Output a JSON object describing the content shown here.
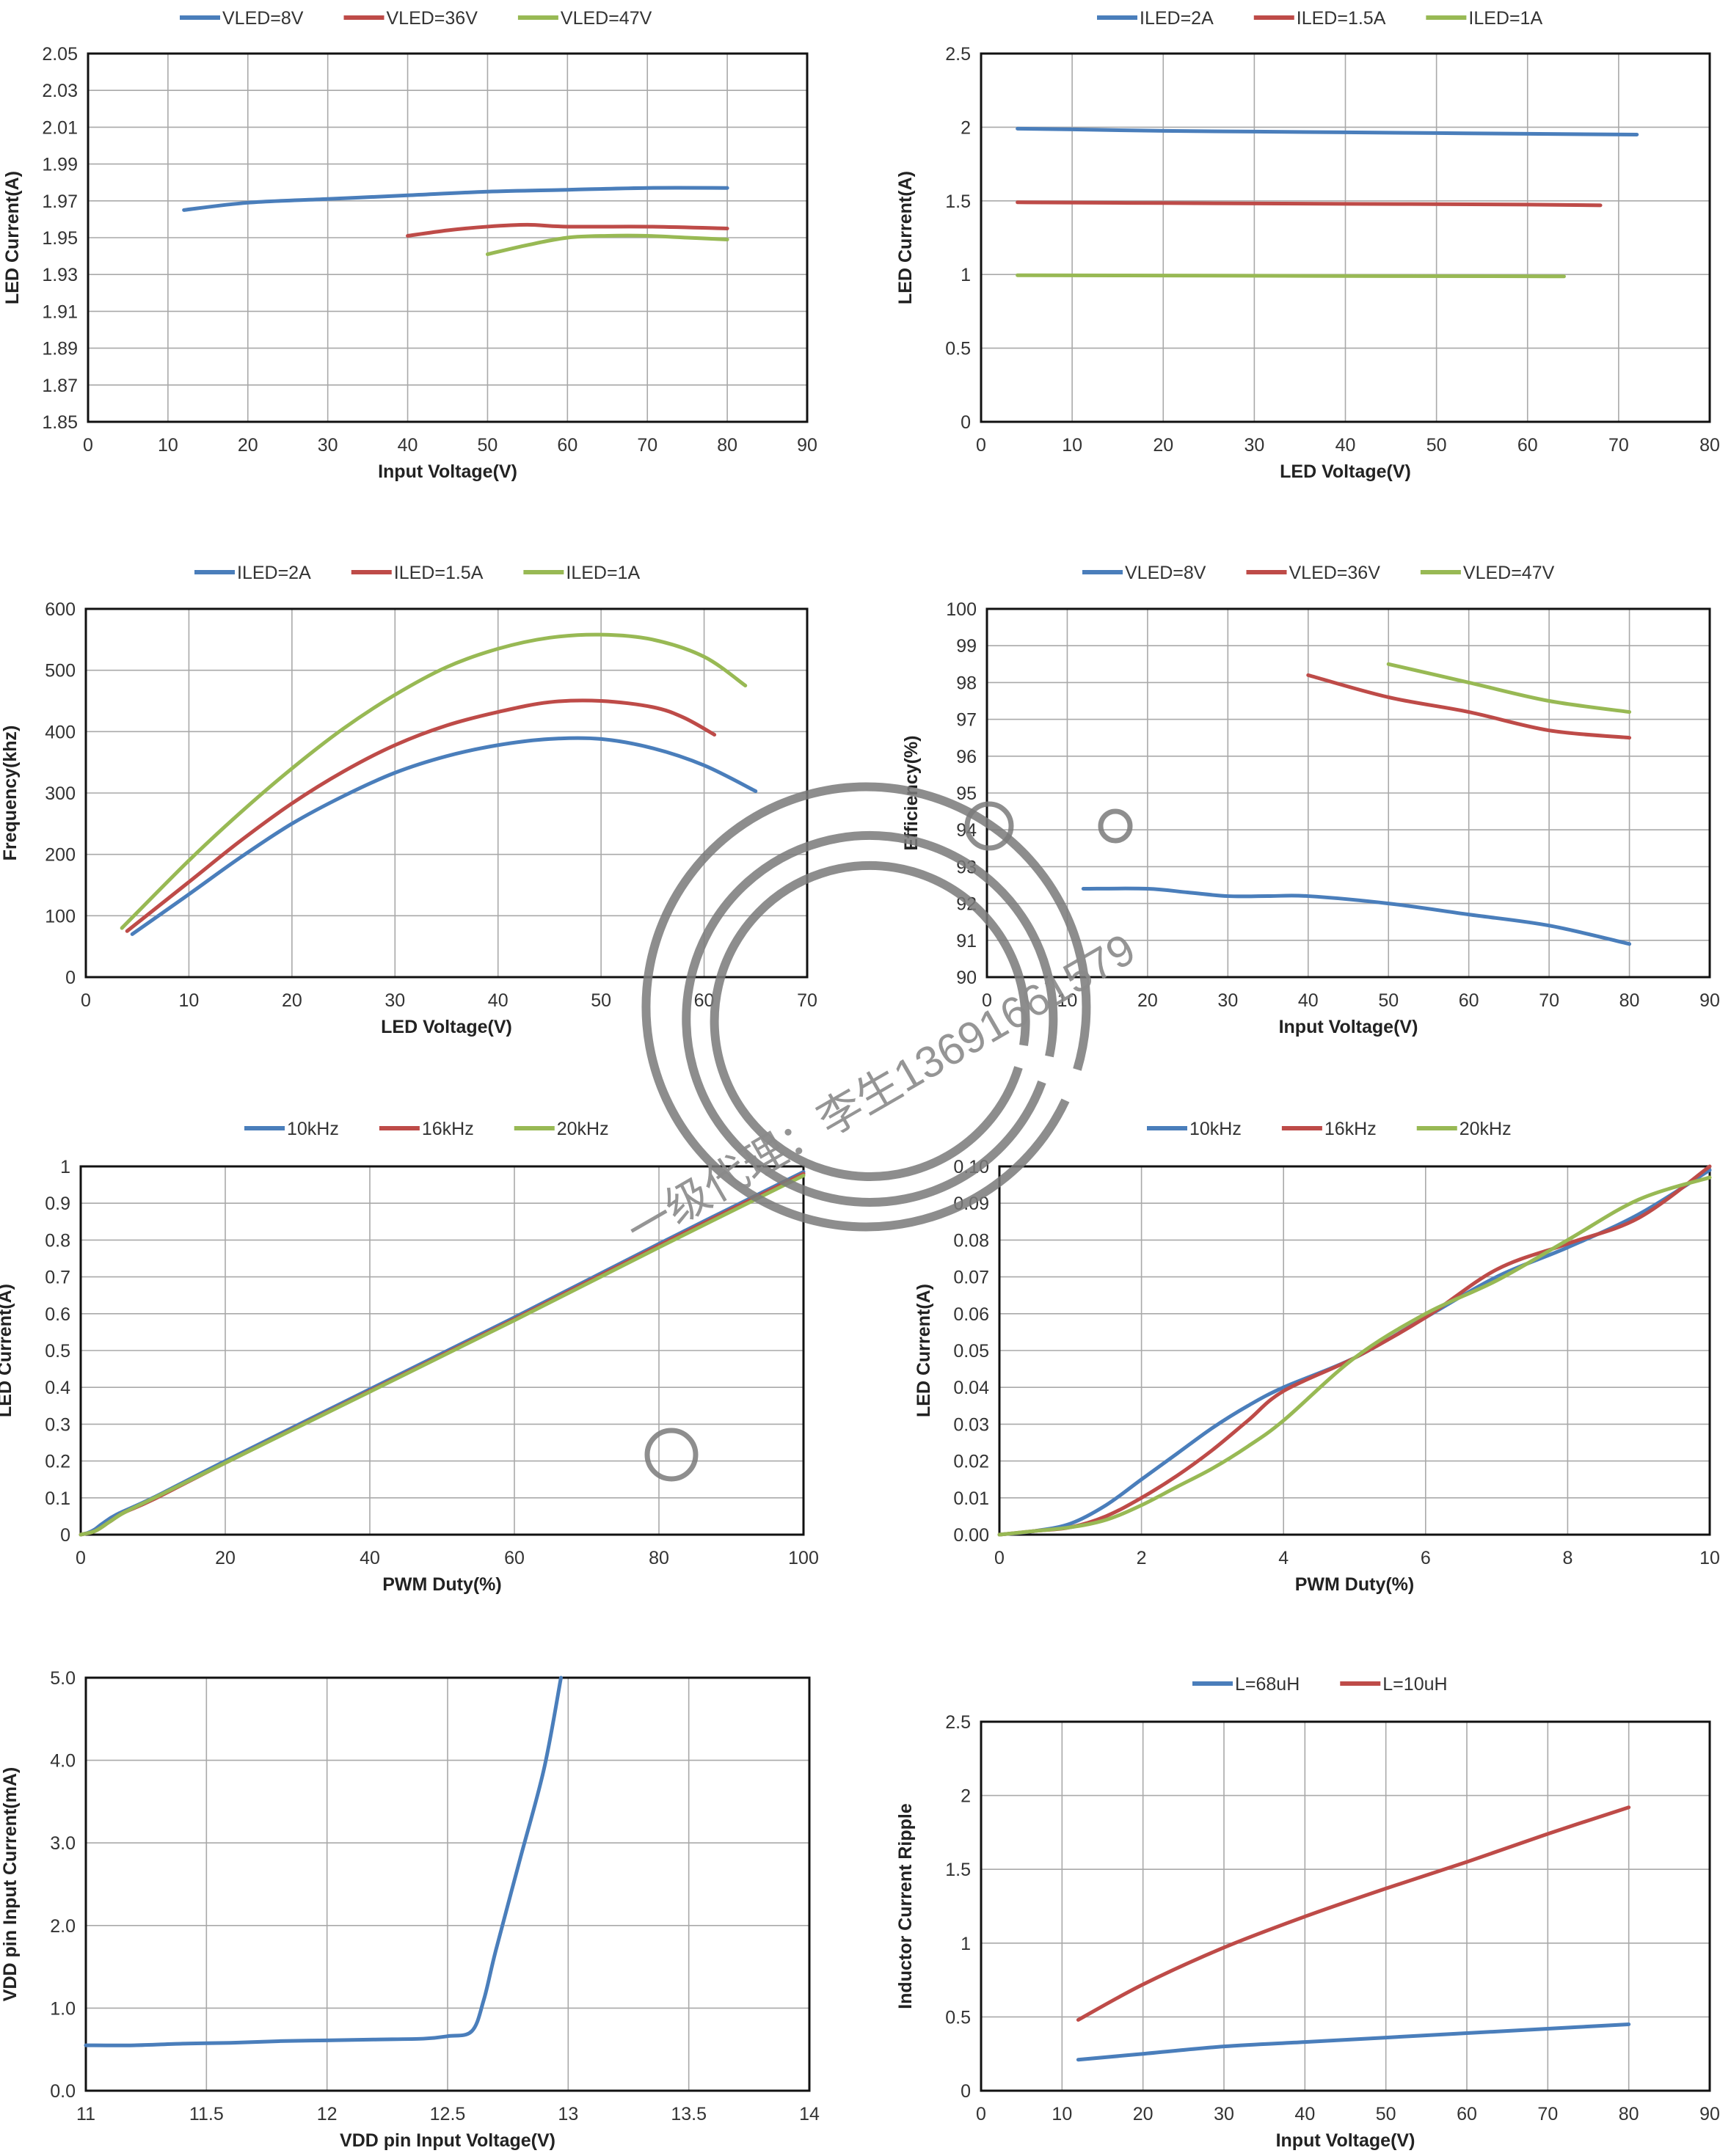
{
  "colors": {
    "blue": "#4a7ebb",
    "red": "#be4b48",
    "green": "#98b954"
  },
  "chart_data": [
    {
      "type": "line",
      "xlabel": "Input Voltage(V)",
      "ylabel": "LED Current(A)",
      "xlim": [
        0,
        90
      ],
      "ylim": [
        1.85,
        2.05
      ],
      "xticks": [
        0,
        10,
        20,
        30,
        40,
        50,
        60,
        70,
        80,
        90
      ],
      "yticks": [
        1.85,
        1.87,
        1.89,
        1.91,
        1.93,
        1.95,
        1.97,
        1.99,
        2.01,
        2.03,
        2.05
      ],
      "xtick_labels": [
        "0",
        "10",
        "20",
        "30",
        "40",
        "50",
        "60",
        "70",
        "80",
        "90"
      ],
      "ytick_labels": [
        "1.85",
        "1.87",
        "1.89",
        "1.91",
        "1.93",
        "1.95",
        "1.97",
        "1.99",
        "2.01",
        "2.03",
        "2.05"
      ],
      "grid": true,
      "legend": "top",
      "series": [
        {
          "name": "VLED=8V",
          "color": "blue",
          "x": [
            12,
            20,
            30,
            40,
            50,
            60,
            70,
            80
          ],
          "y": [
            1.965,
            1.969,
            1.971,
            1.973,
            1.975,
            1.976,
            1.977,
            1.977
          ]
        },
        {
          "name": "VLED=36V",
          "color": "red",
          "x": [
            40,
            45,
            50,
            55,
            60,
            70,
            80
          ],
          "y": [
            1.951,
            1.954,
            1.956,
            1.957,
            1.956,
            1.956,
            1.955
          ]
        },
        {
          "name": "VLED=47V",
          "color": "green",
          "x": [
            50,
            55,
            60,
            65,
            70,
            75,
            80
          ],
          "y": [
            1.941,
            1.946,
            1.95,
            1.951,
            1.951,
            1.95,
            1.949
          ]
        }
      ]
    },
    {
      "type": "line",
      "xlabel": "LED Voltage(V)",
      "ylabel": "LED Current(A)",
      "xlim": [
        0,
        80
      ],
      "ylim": [
        0,
        2.5
      ],
      "xticks": [
        0,
        10,
        20,
        30,
        40,
        50,
        60,
        70,
        80
      ],
      "yticks": [
        0,
        0.5,
        1,
        1.5,
        2,
        2.5
      ],
      "xtick_labels": [
        "0",
        "10",
        "20",
        "30",
        "40",
        "50",
        "60",
        "70",
        "80"
      ],
      "ytick_labels": [
        "0",
        "0.5",
        "1",
        "1.5",
        "2",
        "2.5"
      ],
      "grid": true,
      "legend": "top",
      "series": [
        {
          "name": "ILED=2A",
          "color": "blue",
          "x": [
            4,
            10,
            20,
            30,
            40,
            50,
            60,
            72
          ],
          "y": [
            1.99,
            1.985,
            1.975,
            1.97,
            1.965,
            1.96,
            1.955,
            1.95
          ]
        },
        {
          "name": "ILED=1.5A",
          "color": "red",
          "x": [
            4,
            20,
            40,
            60,
            68
          ],
          "y": [
            1.49,
            1.485,
            1.48,
            1.475,
            1.47
          ]
        },
        {
          "name": "ILED=1A",
          "color": "green",
          "x": [
            4,
            20,
            40,
            60,
            64
          ],
          "y": [
            0.995,
            0.993,
            0.99,
            0.988,
            0.987
          ]
        }
      ]
    },
    {
      "type": "line",
      "xlabel": "LED Voltage(V)",
      "ylabel": "Frequency(khz)",
      "xlim": [
        0,
        70
      ],
      "ylim": [
        0,
        600
      ],
      "xticks": [
        0,
        10,
        20,
        30,
        40,
        50,
        60,
        70
      ],
      "yticks": [
        0,
        100,
        200,
        300,
        400,
        500,
        600
      ],
      "xtick_labels": [
        "0",
        "10",
        "20",
        "30",
        "40",
        "50",
        "60",
        "70"
      ],
      "ytick_labels": [
        "0",
        "100",
        "200",
        "300",
        "400",
        "500",
        "600"
      ],
      "grid": true,
      "legend": "top",
      "series": [
        {
          "name": "ILED=2A",
          "color": "blue",
          "x": [
            4.5,
            10,
            15,
            20,
            25,
            30,
            35,
            40,
            45,
            50,
            55,
            60,
            65
          ],
          "y": [
            70,
            135,
            195,
            250,
            295,
            333,
            360,
            378,
            388,
            388,
            373,
            345,
            303
          ]
        },
        {
          "name": "ILED=1.5A",
          "color": "red",
          "x": [
            4,
            10,
            15,
            20,
            25,
            30,
            35,
            40,
            45,
            50,
            55,
            58,
            61
          ],
          "y": [
            75,
            155,
            222,
            283,
            335,
            378,
            410,
            432,
            448,
            450,
            440,
            423,
            395
          ]
        },
        {
          "name": "ILED=1A",
          "color": "green",
          "x": [
            3.5,
            10,
            15,
            20,
            25,
            30,
            35,
            40,
            45,
            50,
            55,
            60,
            64
          ],
          "y": [
            80,
            190,
            268,
            340,
            405,
            460,
            505,
            535,
            553,
            558,
            550,
            522,
            475
          ]
        }
      ]
    },
    {
      "type": "line",
      "xlabel": "Input Voltage(V)",
      "ylabel": "Efficiency(%)",
      "xlim": [
        0,
        90
      ],
      "ylim": [
        90,
        100
      ],
      "xticks": [
        0,
        10,
        20,
        30,
        40,
        50,
        60,
        70,
        80,
        90
      ],
      "yticks": [
        90,
        91,
        92,
        93,
        94,
        95,
        96,
        97,
        98,
        99,
        100
      ],
      "xtick_labels": [
        "0",
        "10",
        "20",
        "30",
        "40",
        "50",
        "60",
        "70",
        "80",
        "90"
      ],
      "ytick_labels": [
        "90",
        "91",
        "92",
        "93",
        "94",
        "95",
        "96",
        "97",
        "98",
        "99",
        "100"
      ],
      "grid": true,
      "legend": "top",
      "series": [
        {
          "name": "VLED=8V",
          "color": "blue",
          "x": [
            12,
            20,
            25,
            30,
            35,
            40,
            50,
            60,
            70,
            80
          ],
          "y": [
            92.4,
            92.4,
            92.3,
            92.2,
            92.2,
            92.2,
            92.0,
            91.7,
            91.4,
            90.9
          ]
        },
        {
          "name": "VLED=36V",
          "color": "red",
          "x": [
            40,
            50,
            60,
            70,
            80
          ],
          "y": [
            98.2,
            97.6,
            97.2,
            96.7,
            96.5
          ]
        },
        {
          "name": "VLED=47V",
          "color": "green",
          "x": [
            50,
            60,
            70,
            80
          ],
          "y": [
            98.5,
            98.0,
            97.5,
            97.2
          ]
        }
      ]
    },
    {
      "type": "line",
      "xlabel": "PWM Duty(%)",
      "ylabel": "LED Current(A)",
      "xlim": [
        0,
        100
      ],
      "ylim": [
        0,
        1
      ],
      "xticks": [
        0,
        20,
        40,
        60,
        80,
        100
      ],
      "yticks": [
        0,
        0.1,
        0.2,
        0.3,
        0.4,
        0.5,
        0.6,
        0.7,
        0.8,
        0.9,
        1
      ],
      "xtick_labels": [
        "0",
        "20",
        "40",
        "60",
        "80",
        "100"
      ],
      "ytick_labels": [
        "0",
        "0.1",
        "0.2",
        "0.3",
        "0.4",
        "0.5",
        "0.6",
        "0.7",
        "0.8",
        "0.9",
        "1"
      ],
      "grid": true,
      "legend": "top",
      "series": [
        {
          "name": "10kHz",
          "color": "blue",
          "x": [
            0,
            1,
            2,
            3,
            5,
            10,
            20,
            40,
            60,
            80,
            100
          ],
          "y": [
            0,
            0.005,
            0.015,
            0.03,
            0.055,
            0.1,
            0.2,
            0.395,
            0.59,
            0.79,
            0.985
          ]
        },
        {
          "name": "16kHz",
          "color": "red",
          "x": [
            0,
            2,
            4,
            6,
            10,
            20,
            40,
            60,
            80,
            100
          ],
          "y": [
            0,
            0.01,
            0.035,
            0.06,
            0.095,
            0.195,
            0.39,
            0.585,
            0.785,
            0.98
          ]
        },
        {
          "name": "20kHz",
          "color": "green",
          "x": [
            0,
            2,
            4,
            6,
            10,
            20,
            40,
            60,
            80,
            100
          ],
          "y": [
            0,
            0.01,
            0.035,
            0.06,
            0.098,
            0.195,
            0.388,
            0.582,
            0.78,
            0.975
          ]
        }
      ]
    },
    {
      "type": "line",
      "xlabel": "PWM Duty(%)",
      "ylabel": "LED Current(A)",
      "xlim": [
        0,
        10
      ],
      "ylim": [
        0,
        0.1
      ],
      "xticks": [
        0,
        2,
        4,
        6,
        8,
        10
      ],
      "yticks": [
        0,
        0.01,
        0.02,
        0.03,
        0.04,
        0.05,
        0.06,
        0.07,
        0.08,
        0.09,
        0.1
      ],
      "xtick_labels": [
        "0",
        "2",
        "4",
        "6",
        "8",
        "10"
      ],
      "ytick_labels": [
        "0.00",
        "0.01",
        "0.02",
        "0.03",
        "0.04",
        "0.05",
        "0.06",
        "0.07",
        "0.08",
        "0.09",
        "0.10"
      ],
      "grid": true,
      "legend": "top",
      "series": [
        {
          "name": "10kHz",
          "color": "blue",
          "x": [
            0,
            0.5,
            1,
            1.5,
            2,
            2.5,
            3,
            3.5,
            4,
            5,
            6,
            7,
            8,
            9,
            10
          ],
          "y": [
            0,
            0.001,
            0.003,
            0.008,
            0.015,
            0.022,
            0.029,
            0.035,
            0.04,
            0.048,
            0.059,
            0.07,
            0.078,
            0.087,
            0.099
          ]
        },
        {
          "name": "16kHz",
          "color": "red",
          "x": [
            0,
            0.5,
            1,
            1.5,
            2,
            2.5,
            3,
            3.5,
            4,
            5,
            6,
            7,
            8,
            9,
            10
          ],
          "y": [
            0,
            0.001,
            0.002,
            0.005,
            0.01,
            0.016,
            0.023,
            0.031,
            0.039,
            0.048,
            0.059,
            0.072,
            0.079,
            0.086,
            0.1
          ]
        },
        {
          "name": "20kHz",
          "color": "green",
          "x": [
            0,
            0.5,
            1,
            1.5,
            2,
            2.5,
            3,
            3.5,
            4,
            5,
            6,
            7,
            8,
            9,
            10
          ],
          "y": [
            0,
            0.001,
            0.002,
            0.004,
            0.008,
            0.013,
            0.018,
            0.024,
            0.031,
            0.048,
            0.06,
            0.069,
            0.08,
            0.091,
            0.097
          ]
        }
      ]
    },
    {
      "type": "line",
      "xlabel": "VDD pin Input Voltage(V)",
      "ylabel": "VDD pin Input Current(mA)",
      "xlim": [
        11,
        14
      ],
      "ylim": [
        0,
        5
      ],
      "xticks": [
        11,
        11.5,
        12,
        12.5,
        13,
        13.5,
        14
      ],
      "yticks": [
        0,
        1,
        2,
        3,
        4,
        5
      ],
      "xtick_labels": [
        "11",
        "11.5",
        "12",
        "12.5",
        "13",
        "13.5",
        "14"
      ],
      "ytick_labels": [
        "0.0",
        "1.0",
        "2.0",
        "3.0",
        "4.0",
        "5.0"
      ],
      "grid": true,
      "legend": "none",
      "series": [
        {
          "name": "",
          "color": "blue",
          "x": [
            11,
            11.2,
            11.4,
            11.6,
            11.8,
            12,
            12.2,
            12.4,
            12.5,
            12.6,
            12.65,
            12.7,
            12.8,
            12.9,
            12.97
          ],
          "y": [
            0.55,
            0.55,
            0.57,
            0.58,
            0.6,
            0.61,
            0.62,
            0.63,
            0.66,
            0.72,
            1.1,
            1.7,
            2.8,
            3.9,
            5.0
          ]
        }
      ]
    },
    {
      "type": "line",
      "xlabel": "Input Voltage(V)",
      "ylabel": "Inductor Current Ripple",
      "xlim": [
        0,
        90
      ],
      "ylim": [
        0,
        2.5
      ],
      "xticks": [
        0,
        10,
        20,
        30,
        40,
        50,
        60,
        70,
        80,
        90
      ],
      "yticks": [
        0,
        0.5,
        1,
        1.5,
        2,
        2.5
      ],
      "xtick_labels": [
        "0",
        "10",
        "20",
        "30",
        "40",
        "50",
        "60",
        "70",
        "80",
        "90"
      ],
      "ytick_labels": [
        "0",
        "0.5",
        "1",
        "1.5",
        "2",
        "2.5"
      ],
      "grid": true,
      "legend": "top",
      "series": [
        {
          "name": "L=68uH",
          "color": "blue",
          "x": [
            12,
            20,
            30,
            40,
            50,
            60,
            70,
            80
          ],
          "y": [
            0.21,
            0.25,
            0.3,
            0.33,
            0.36,
            0.39,
            0.42,
            0.45
          ]
        },
        {
          "name": "L=10uH",
          "color": "red",
          "x": [
            12,
            20,
            30,
            40,
            50,
            60,
            70,
            80
          ],
          "y": [
            0.48,
            0.72,
            0.97,
            1.18,
            1.37,
            1.55,
            1.74,
            1.92
          ]
        }
      ]
    }
  ],
  "watermark": {
    "text": "一级代理：李生13691661579"
  }
}
